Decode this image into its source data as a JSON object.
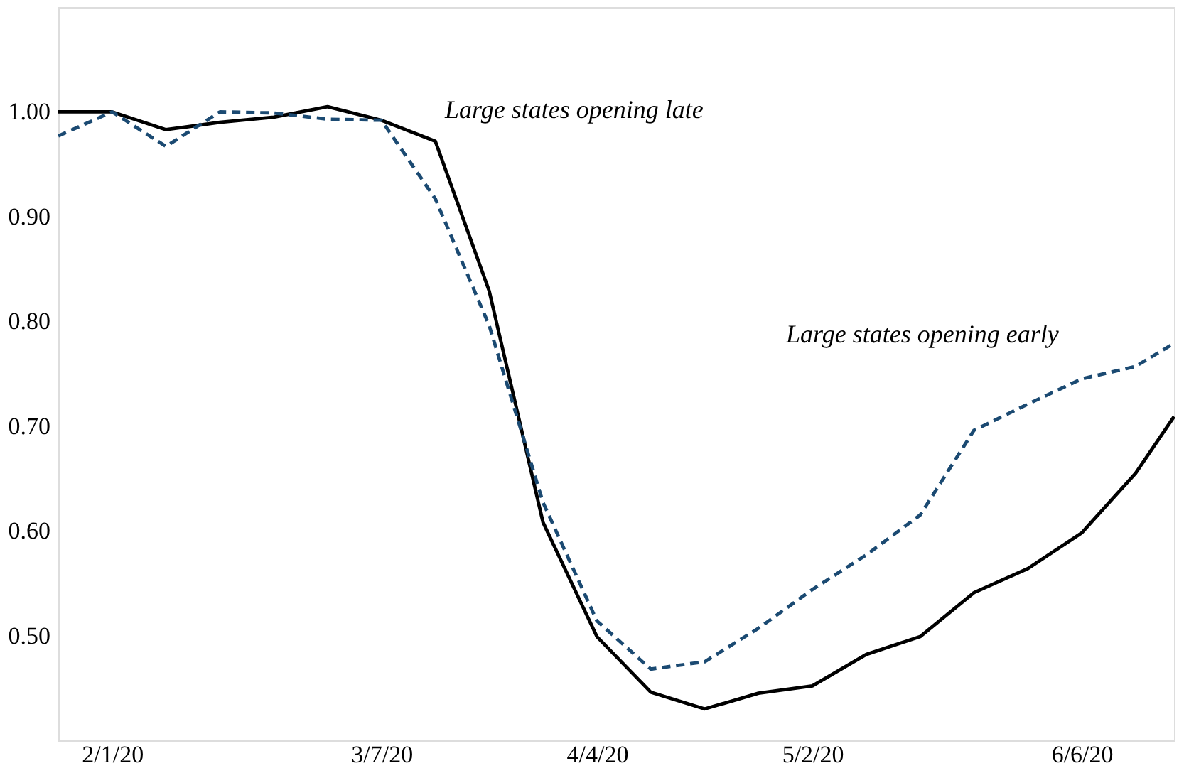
{
  "chart_data": {
    "type": "line",
    "x": [
      "2020-01-25",
      "2020-02-01",
      "2020-02-08",
      "2020-02-15",
      "2020-02-22",
      "2020-02-29",
      "2020-03-07",
      "2020-03-14",
      "2020-03-21",
      "2020-03-28",
      "2020-04-04",
      "2020-04-11",
      "2020-04-18",
      "2020-04-25",
      "2020-05-02",
      "2020-05-09",
      "2020-05-16",
      "2020-05-23",
      "2020-05-30",
      "2020-06-06",
      "2020-06-13",
      "2020-06-18"
    ],
    "series": [
      {
        "color": "#000000",
        "line_style": "solid",
        "values": [
          1.0,
          1.0,
          0.983,
          0.99,
          0.995,
          1.005,
          0.992,
          0.972,
          0.829,
          0.608,
          0.499,
          0.446,
          0.43,
          0.445,
          0.452,
          0.482,
          0.499,
          0.541,
          0.564,
          0.598,
          0.655,
          0.709
        ]
      },
      {
        "color": "#1b4a72",
        "line_style": "dashed",
        "values": [
          0.977,
          1.0,
          0.967,
          1.0,
          0.999,
          0.993,
          0.992,
          0.917,
          0.796,
          0.627,
          0.514,
          0.468,
          0.475,
          0.507,
          0.544,
          0.577,
          0.615,
          0.696,
          0.721,
          0.745,
          0.757,
          0.779
        ]
      }
    ],
    "xlim": [
      "2020-01-25",
      "2020-06-18"
    ],
    "xticks": [
      {
        "value": "2020-02-01",
        "label": "2/1/20"
      },
      {
        "value": "2020-03-07",
        "label": "3/7/20"
      },
      {
        "value": "2020-04-04",
        "label": "4/4/20"
      },
      {
        "value": "2020-05-02",
        "label": "5/2/20"
      },
      {
        "value": "2020-06-06",
        "label": "6/6/20"
      }
    ],
    "ylim": [
      0.4,
      1.1
    ],
    "yticks": [
      {
        "value": 0.5,
        "label": "0.50"
      },
      {
        "value": 0.6,
        "label": "0.60"
      },
      {
        "value": 0.7,
        "label": "0.70"
      },
      {
        "value": 0.8,
        "label": "0.80"
      },
      {
        "value": 0.9,
        "label": "0.90"
      },
      {
        "value": 1.0,
        "label": "1.00"
      }
    ],
    "annotations": [
      "Large states opening late",
      "Large states opening early"
    ],
    "grid": false,
    "marker": "none"
  }
}
